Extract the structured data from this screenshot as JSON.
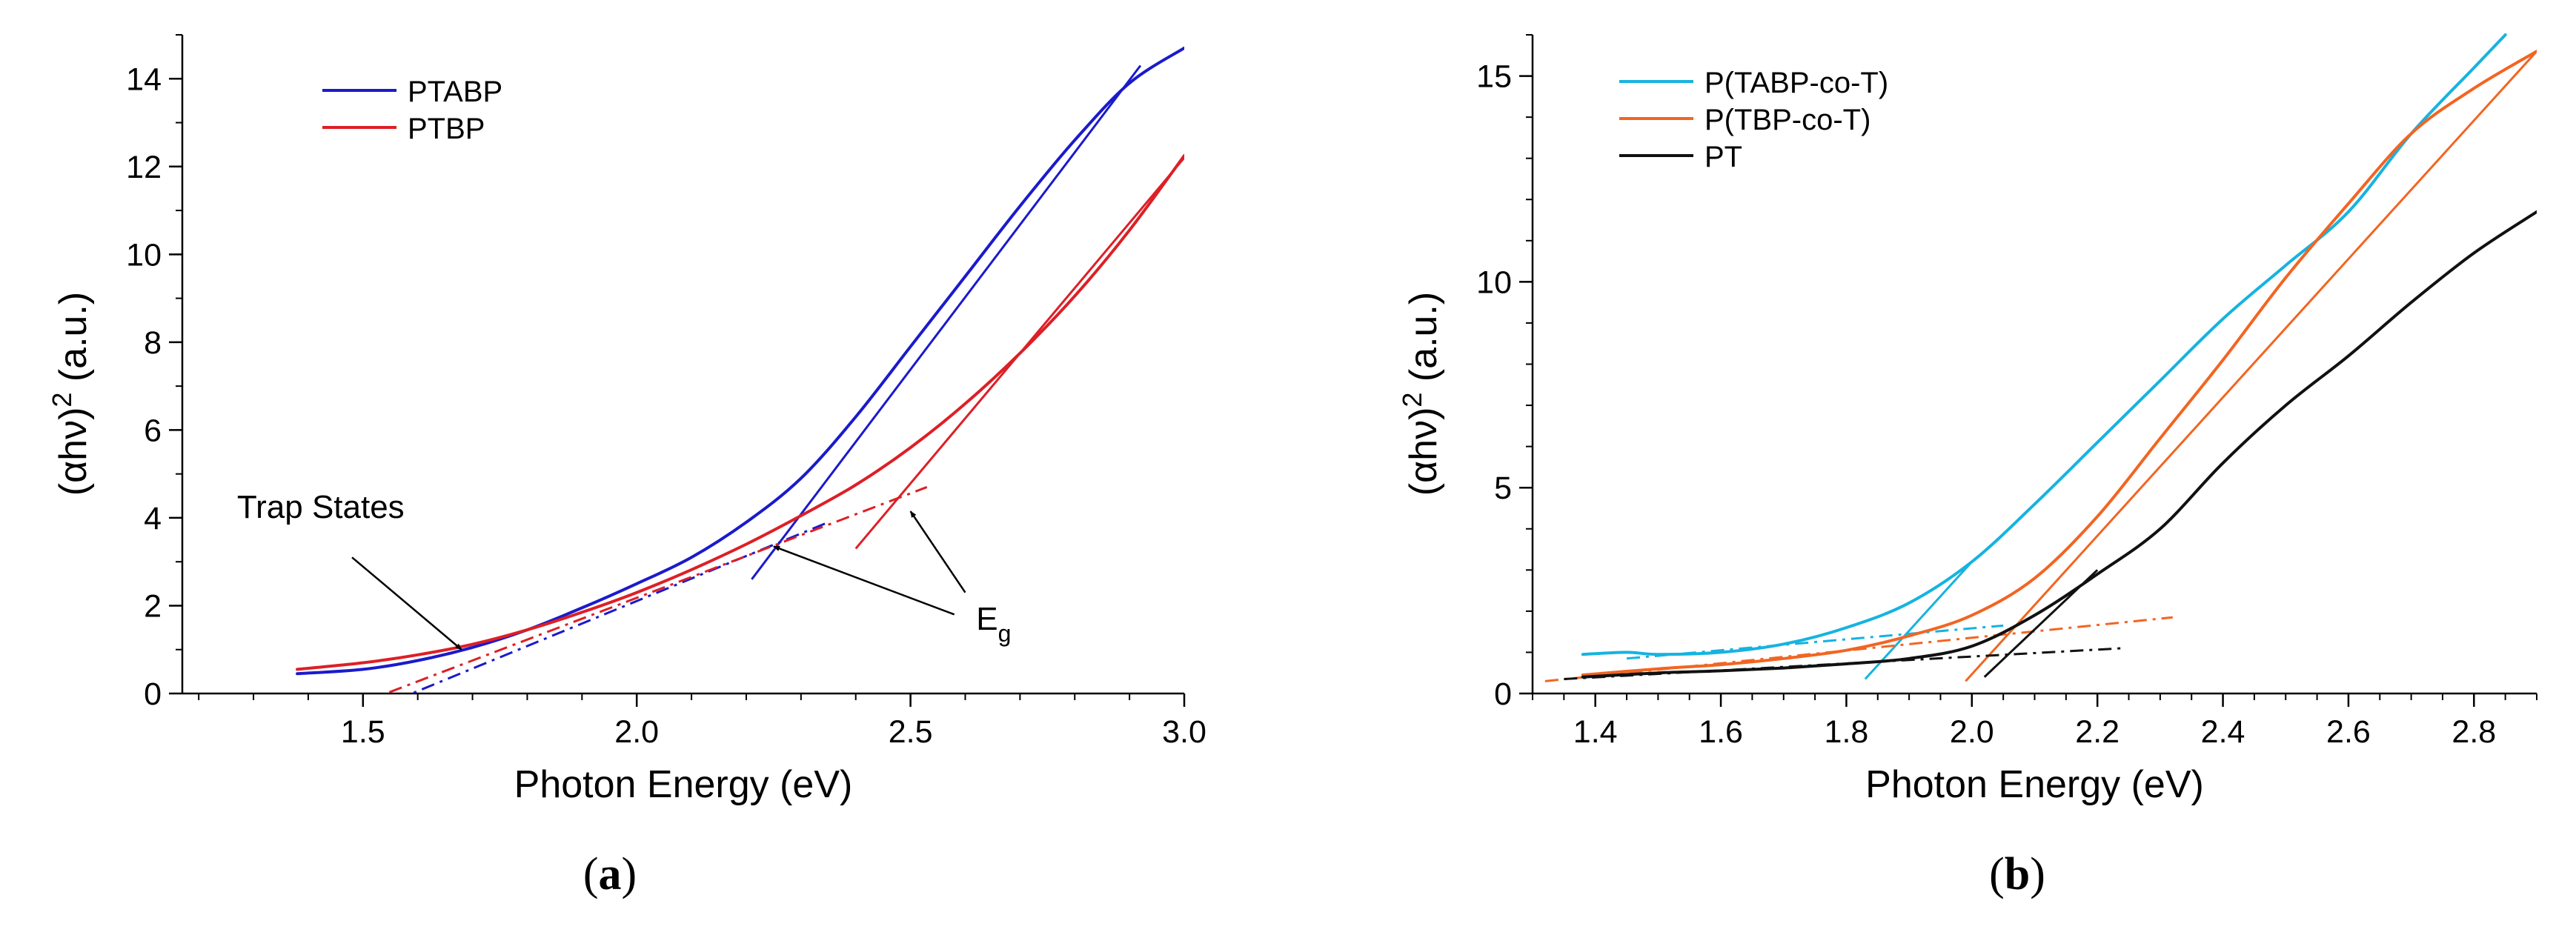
{
  "chart_data": [
    {
      "type": "line",
      "panel_label": "a",
      "xlabel": "Photon Energy (eV)",
      "ylabel_base": "(αhν)",
      "ylabel_sup": "2",
      "ylabel_unit": "(a.u.)",
      "xlim": [
        1.17,
        3.0
      ],
      "ylim": [
        0,
        15
      ],
      "xticks": [
        1.5,
        2.0,
        2.5,
        3.0
      ],
      "xtick_labels": [
        "1.5",
        "2.0",
        "2.5",
        "3.0"
      ],
      "x_minor_step": 0.1,
      "yticks": [
        0,
        2,
        4,
        6,
        8,
        10,
        12,
        14
      ],
      "ytick_labels": [
        "0",
        "2",
        "4",
        "6",
        "8",
        "10",
        "12",
        "14"
      ],
      "y_minor_step": 1,
      "legend": "top-left",
      "series": [
        {
          "name": "PTABP",
          "color": "#1a1acc",
          "x": [
            1.38,
            1.5,
            1.6,
            1.7,
            1.8,
            1.9,
            2.0,
            2.1,
            2.2,
            2.3,
            2.4,
            2.5,
            2.6,
            2.7,
            2.8,
            2.9,
            3.0
          ],
          "y": [
            0.45,
            0.55,
            0.75,
            1.05,
            1.45,
            1.95,
            2.5,
            3.1,
            3.9,
            4.9,
            6.3,
            7.9,
            9.5,
            11.1,
            12.6,
            13.9,
            14.7
          ]
        },
        {
          "name": "PTBP",
          "color": "#dd1f26",
          "x": [
            1.38,
            1.5,
            1.6,
            1.7,
            1.8,
            1.9,
            2.0,
            2.1,
            2.2,
            2.3,
            2.4,
            2.5,
            2.6,
            2.7,
            2.8,
            2.9,
            3.0
          ],
          "y": [
            0.55,
            0.7,
            0.88,
            1.12,
            1.45,
            1.85,
            2.3,
            2.82,
            3.4,
            4.05,
            4.75,
            5.6,
            6.6,
            7.75,
            9.05,
            10.55,
            12.25
          ]
        }
      ],
      "fits": [
        {
          "series": "PTABP",
          "style": "solid",
          "x": [
            2.21,
            2.92
          ],
          "y": [
            2.6,
            14.3
          ]
        },
        {
          "series": "PTABP",
          "style": "dashdot",
          "x": [
            1.56,
            2.35
          ],
          "y": [
            -0.15,
            3.9
          ]
        },
        {
          "series": "PTBP",
          "style": "solid",
          "x": [
            2.4,
            3.0
          ],
          "y": [
            3.3,
            12.2
          ]
        },
        {
          "series": "PTBP",
          "style": "dashdot",
          "x": [
            1.5,
            2.53
          ],
          "y": [
            -0.2,
            4.7
          ]
        }
      ],
      "annotations": [
        {
          "text": "Trap States",
          "text_at": [
            1.27,
            4.0
          ],
          "arrow_from": [
            1.48,
            3.1
          ],
          "arrow_to": [
            1.68,
            1.0
          ]
        },
        {
          "text": "E",
          "subscript": "g",
          "text_at": [
            2.62,
            1.45
          ],
          "arrows": [
            {
              "from": [
                2.58,
                1.8
              ],
              "to": [
                2.25,
                3.35
              ]
            },
            {
              "from": [
                2.6,
                2.3
              ],
              "to": [
                2.5,
                4.15
              ]
            }
          ]
        }
      ]
    },
    {
      "type": "line",
      "panel_label": "b",
      "xlabel": "Photon Energy (eV)",
      "ylabel_base": "(αhν)",
      "ylabel_sup": "2",
      "ylabel_unit": "(a.u.)",
      "xlim": [
        1.3,
        2.9
      ],
      "ylim": [
        0,
        16
      ],
      "xticks": [
        1.4,
        1.6,
        1.8,
        2.0,
        2.2,
        2.4,
        2.6,
        2.8
      ],
      "xtick_labels": [
        "1.4",
        "1.6",
        "1.8",
        "2.0",
        "2.2",
        "2.4",
        "2.6",
        "2.8"
      ],
      "x_minor_step": 0.05,
      "yticks": [
        0,
        5,
        10,
        15
      ],
      "ytick_labels": [
        "0",
        "5",
        "10",
        "15"
      ],
      "y_minor_step": 1,
      "legend": "top-left",
      "series": [
        {
          "name": "P(TABP-co-T)",
          "color": "#16b3e0",
          "x": [
            1.38,
            1.45,
            1.5,
            1.6,
            1.7,
            1.8,
            1.9,
            2.0,
            2.1,
            2.2,
            2.3,
            2.4,
            2.5,
            2.6,
            2.7,
            2.8,
            2.85
          ],
          "y": [
            0.95,
            1.0,
            0.95,
            1.0,
            1.2,
            1.6,
            2.2,
            3.2,
            4.6,
            6.1,
            7.6,
            9.1,
            10.4,
            11.7,
            13.6,
            15.2,
            16.0
          ]
        },
        {
          "name": "P(TBP-co-T)",
          "color": "#f26522",
          "x": [
            1.38,
            1.5,
            1.6,
            1.7,
            1.8,
            1.9,
            2.0,
            2.1,
            2.2,
            2.3,
            2.4,
            2.5,
            2.6,
            2.7,
            2.8,
            2.9
          ],
          "y": [
            0.45,
            0.6,
            0.7,
            0.85,
            1.05,
            1.4,
            1.9,
            2.8,
            4.3,
            6.2,
            8.1,
            10.1,
            11.9,
            13.6,
            14.7,
            15.6
          ]
        },
        {
          "name": "PT",
          "color": "#111111",
          "x": [
            1.38,
            1.5,
            1.6,
            1.7,
            1.8,
            1.9,
            2.0,
            2.1,
            2.2,
            2.3,
            2.4,
            2.5,
            2.6,
            2.7,
            2.8,
            2.9
          ],
          "y": [
            0.4,
            0.5,
            0.55,
            0.62,
            0.72,
            0.85,
            1.15,
            1.9,
            2.9,
            4.0,
            5.6,
            7.0,
            8.2,
            9.5,
            10.7,
            11.7
          ]
        }
      ],
      "fits": [
        {
          "series": "P(TABP-co-T)",
          "style": "solid",
          "x": [
            1.83,
            2.0
          ],
          "y": [
            0.35,
            3.2
          ]
        },
        {
          "series": "P(TABP-co-T)",
          "style": "dashdot",
          "x": [
            1.45,
            2.05
          ],
          "y": [
            0.85,
            1.65
          ]
        },
        {
          "series": "P(TBP-co-T)",
          "style": "solid",
          "x": [
            1.99,
            2.9
          ],
          "y": [
            0.3,
            15.6
          ]
        },
        {
          "series": "P(TBP-co-T)",
          "style": "dashdot",
          "x": [
            1.32,
            2.32
          ],
          "y": [
            0.3,
            1.85
          ]
        },
        {
          "series": "PT",
          "style": "solid",
          "x": [
            2.02,
            2.2
          ],
          "y": [
            0.4,
            3.0
          ]
        },
        {
          "series": "PT",
          "style": "dashdot",
          "x": [
            1.35,
            2.24
          ],
          "y": [
            0.35,
            1.1
          ]
        }
      ],
      "annotations": []
    }
  ]
}
